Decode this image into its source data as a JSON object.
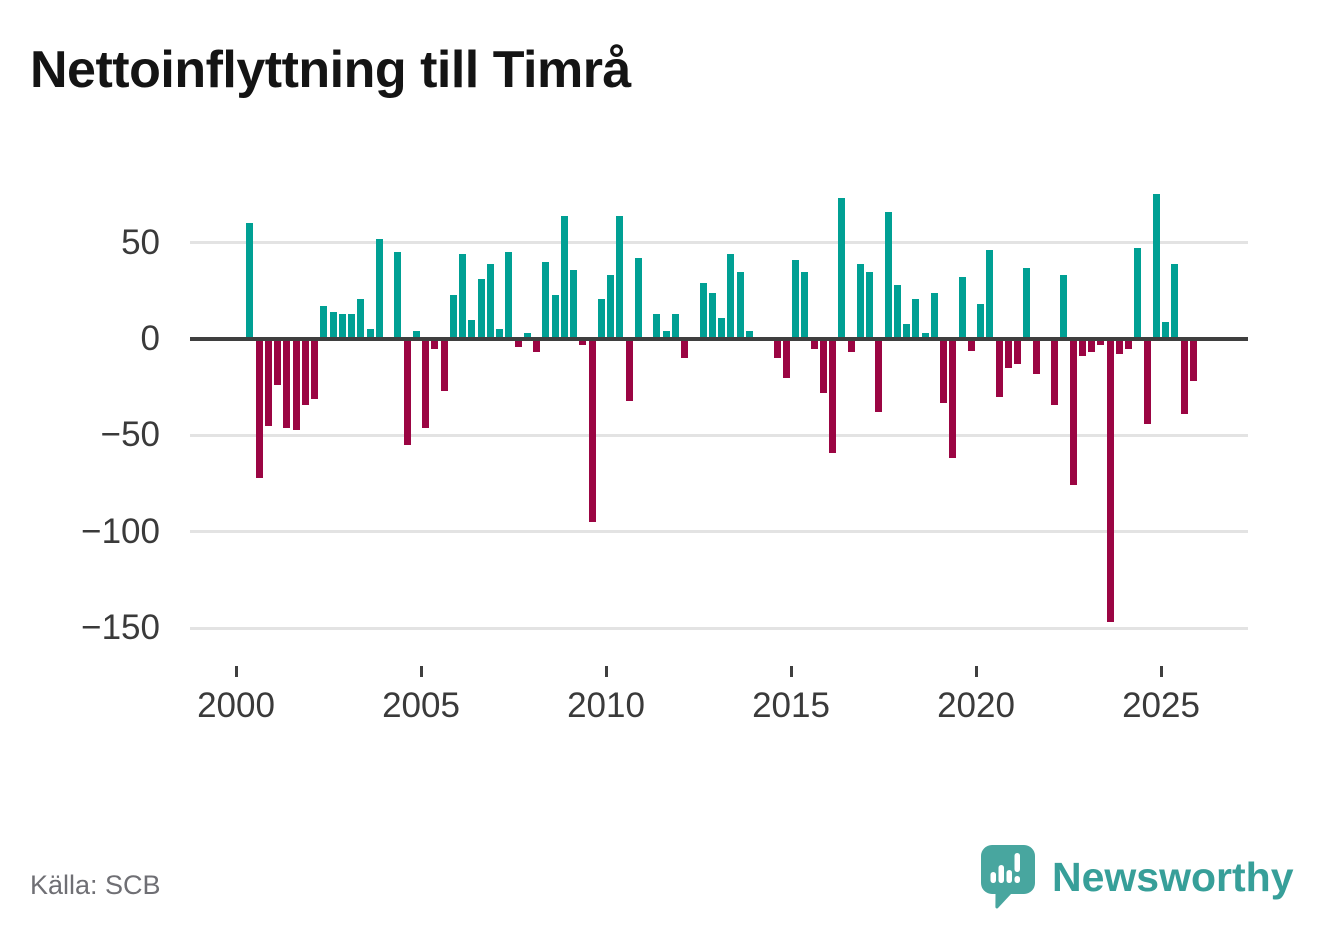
{
  "title": "Nettoinflyttning till Timrå",
  "source_note": "Källa: SCB",
  "branding": {
    "wordmark": "Newsworthy",
    "icon": "speech-bubble-bar-chart-exclamation-icon",
    "brand_color": "#379f99",
    "bubble_color": "#48a69f"
  },
  "colors": {
    "positive_bar": "#00a094",
    "negative_bar": "#9b0543",
    "grid": "#e3e3e3",
    "zero_line": "#3f3f3f",
    "axis_text": "#3a3a3a",
    "source_text": "#6f6f74",
    "title_text": "#141414",
    "background": "#ffffff"
  },
  "chart_data": {
    "type": "bar",
    "title": "Nettoinflyttning till Timrå",
    "xlabel": "",
    "ylabel": "",
    "ylim": [
      -160,
      80
    ],
    "grid": "horizontal",
    "legend": "none",
    "yticks": [
      {
        "value": 50,
        "label": "50"
      },
      {
        "value": 0,
        "label": "0"
      },
      {
        "value": -50,
        "label": "−50"
      },
      {
        "value": -100,
        "label": "−100"
      },
      {
        "value": -150,
        "label": "−150"
      }
    ],
    "xticks": [
      {
        "value": 2000,
        "label": "2000"
      },
      {
        "value": 2005,
        "label": "2005"
      },
      {
        "value": 2010,
        "label": "2010"
      },
      {
        "value": 2015,
        "label": "2015"
      },
      {
        "value": 2020,
        "label": "2020"
      },
      {
        "value": 2025,
        "label": "2025"
      }
    ],
    "periods": [
      "2000Q2",
      "2000Q3",
      "2000Q4",
      "2001Q1",
      "2001Q2",
      "2001Q3",
      "2001Q4",
      "2002Q1",
      "2002Q2",
      "2002Q3",
      "2002Q4",
      "2003Q1",
      "2003Q2",
      "2003Q3",
      "2003Q4",
      "2004Q1",
      "2004Q2",
      "2004Q3",
      "2004Q4",
      "2005Q1",
      "2005Q2",
      "2005Q3",
      "2005Q4",
      "2006Q1",
      "2006Q2",
      "2006Q3",
      "2006Q4",
      "2007Q1",
      "2007Q2",
      "2007Q3",
      "2007Q4",
      "2008Q1",
      "2008Q2",
      "2008Q3",
      "2008Q4",
      "2009Q1",
      "2009Q2",
      "2009Q3",
      "2009Q4",
      "2010Q1",
      "2010Q2",
      "2010Q3",
      "2010Q4",
      "2011Q1",
      "2011Q2",
      "2011Q3",
      "2011Q4",
      "2012Q1",
      "2012Q2",
      "2012Q3",
      "2012Q4",
      "2013Q1",
      "2013Q2",
      "2013Q3",
      "2013Q4",
      "2014Q1",
      "2014Q2",
      "2014Q3",
      "2014Q4",
      "2015Q1",
      "2015Q2",
      "2015Q3",
      "2015Q4",
      "2016Q1",
      "2016Q2",
      "2016Q3",
      "2016Q4",
      "2017Q1",
      "2017Q2",
      "2017Q3",
      "2017Q4",
      "2018Q1",
      "2018Q2",
      "2018Q3",
      "2018Q4",
      "2019Q1",
      "2019Q2",
      "2019Q3",
      "2019Q4",
      "2020Q1",
      "2020Q2",
      "2020Q3",
      "2020Q4",
      "2021Q1",
      "2021Q2",
      "2021Q3",
      "2021Q4",
      "2022Q1",
      "2022Q2",
      "2022Q3",
      "2022Q4",
      "2023Q1",
      "2023Q2",
      "2023Q3",
      "2023Q4",
      "2024Q1",
      "2024Q2",
      "2024Q3",
      "2024Q4",
      "2025Q1",
      "2025Q2",
      "2025Q3",
      "2025Q4"
    ],
    "values": [
      60,
      -72,
      -45,
      -24,
      -46,
      -47,
      -34,
      -31,
      17,
      14,
      13,
      13,
      21,
      5,
      52,
      0,
      45,
      -55,
      4,
      -46,
      -5,
      -27,
      23,
      44,
      10,
      31,
      39,
      5,
      45,
      -4,
      3,
      -7,
      40,
      23,
      64,
      36,
      -3,
      -95,
      21,
      33,
      64,
      -32,
      42,
      0,
      13,
      4,
      13,
      -10,
      0,
      29,
      24,
      11,
      44,
      35,
      4,
      0,
      0,
      -10,
      -20,
      41,
      35,
      -5,
      -28,
      -59,
      73,
      -7,
      39,
      35,
      -38,
      66,
      28,
      8,
      21,
      3,
      24,
      -33,
      -62,
      32,
      -6,
      18,
      46,
      -30,
      -15,
      -13,
      37,
      -18,
      0,
      -34,
      33,
      -76,
      -9,
      -7,
      -3,
      -147,
      -8,
      -5,
      47,
      -44,
      75,
      9,
      39,
      -39,
      -22
    ]
  }
}
